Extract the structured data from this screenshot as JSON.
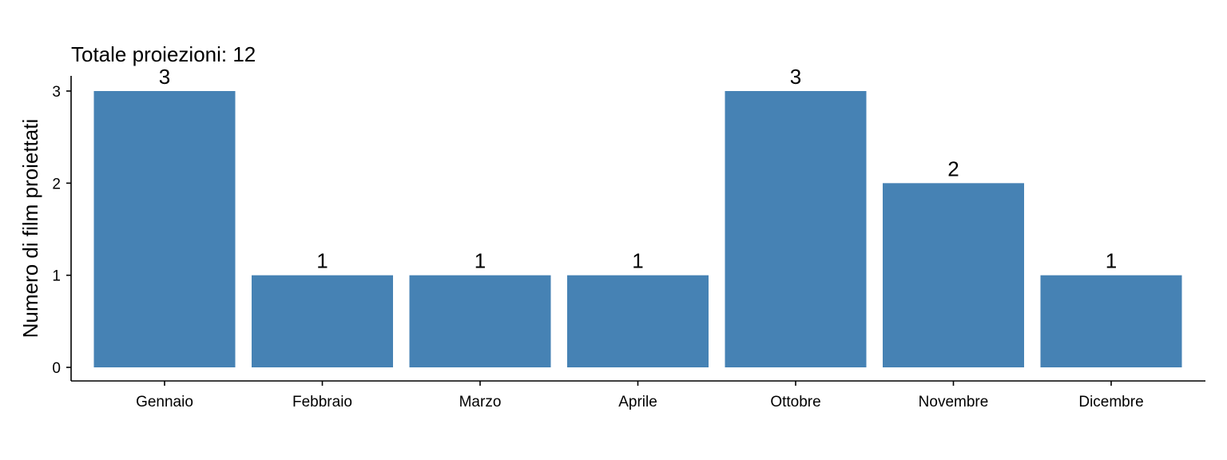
{
  "chart_data": {
    "type": "bar",
    "title": "Totale proiezioni: 12",
    "xlabel": "",
    "ylabel": "Numero di film proiettati",
    "categories": [
      "Gennaio",
      "Febbraio",
      "Marzo",
      "Aprile",
      "Ottobre",
      "Novembre",
      "Dicembre"
    ],
    "values": [
      3,
      1,
      1,
      1,
      3,
      2,
      1
    ],
    "data_labels": [
      "3",
      "1",
      "1",
      "1",
      "3",
      "2",
      "1"
    ],
    "yticks": [
      0,
      1,
      2,
      3
    ],
    "ytick_labels": [
      "0",
      "1",
      "2",
      "3"
    ],
    "ylim": [
      0,
      3
    ],
    "grid": false,
    "legend": "none",
    "bar_color": "#4682B4"
  }
}
